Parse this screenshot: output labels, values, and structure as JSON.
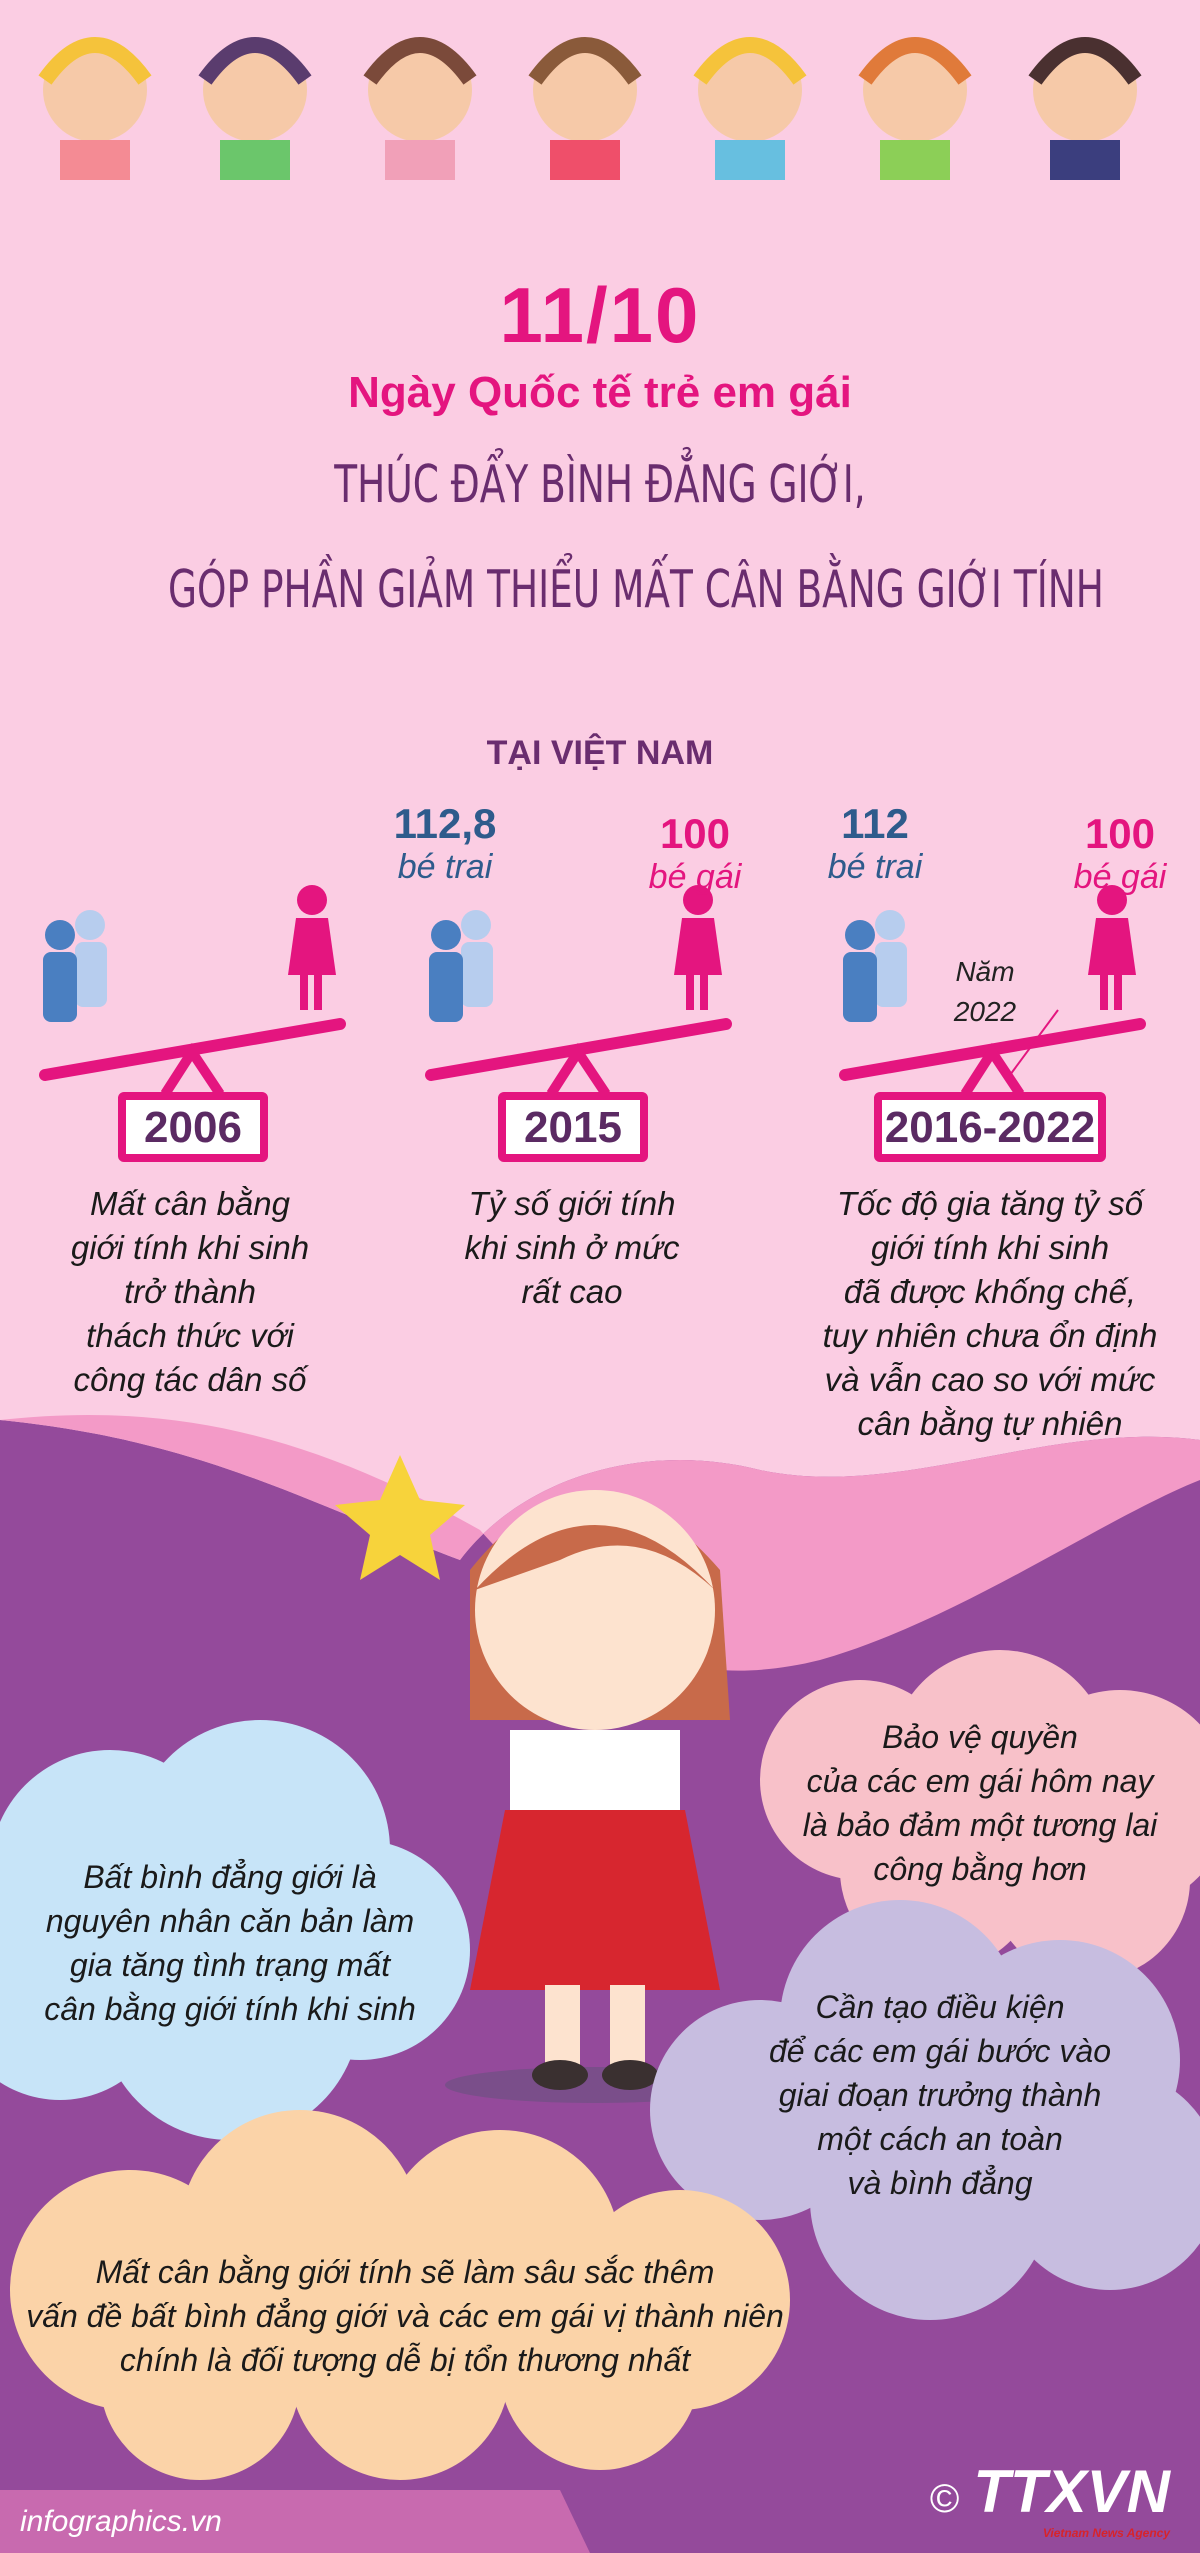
{
  "header": {
    "date": "11/10",
    "occasion": "Ngày Quốc tế trẻ em gái",
    "headline_line1": "THÚC ĐẨY BÌNH ĐẲNG GIỚI,",
    "headline_line2": "GÓP PHẦN GIẢM THIỂU MẤT CÂN BẰNG GIỚI TÍNH"
  },
  "section_title": "TẠI VIỆT NAM",
  "timeline": [
    {
      "year": "2006",
      "boys": "",
      "boys_label": "",
      "girls": "",
      "girls_label": "",
      "description": [
        "Mất cân bằng",
        "giới tính khi sinh",
        "trở thành",
        "thách thức với",
        "công tác dân số"
      ]
    },
    {
      "year": "2015",
      "boys": "112,8",
      "boys_label": "bé trai",
      "girls": "100",
      "girls_label": "bé gái",
      "description": [
        "Tỷ số giới tính",
        "khi sinh ở mức",
        "rất cao"
      ]
    },
    {
      "year": "2016-2022",
      "boys": "112",
      "boys_label": "bé trai",
      "girls": "100",
      "girls_label": "bé gái",
      "note": [
        "Năm",
        "2022"
      ],
      "description": [
        "Tốc độ gia tăng tỷ số",
        "giới tính khi sinh",
        "đã được khống chế,",
        "tuy nhiên chưa ổn định",
        "và vẫn cao so với mức",
        "cân bằng tự nhiên"
      ]
    }
  ],
  "clouds": {
    "blue": [
      "Bất bình đẳng giới là",
      "nguyên nhân căn bản làm",
      "gia tăng tình trạng mất",
      "cân bằng giới tính khi sinh"
    ],
    "pink": [
      "Bảo vệ quyền",
      "của các em gái hôm nay",
      "là bảo đảm một tương lai",
      "công bằng hơn"
    ],
    "lavender": [
      "Cần tạo điều kiện",
      "để các em gái bước vào",
      "giai đoạn trưởng thành",
      "một cách an toàn",
      "và bình đẳng"
    ],
    "orange": [
      "Mất cân bằng giới tính sẽ làm sâu sắc thêm",
      "vấn đề bất bình đẳng giới và các em gái vị thành niên",
      "chính là đối tượng dễ bị tổn thương nhất"
    ]
  },
  "footer": {
    "site": "infographics.vn",
    "copyright": "©",
    "logo": "TTXVN",
    "agency": "Vietnam News Agency"
  },
  "colors": {
    "background": "#fbcde3",
    "accent": "#e4157f",
    "purple": "#944a9b",
    "boy": "#4a7fc1",
    "title": "#6a2d6f"
  }
}
